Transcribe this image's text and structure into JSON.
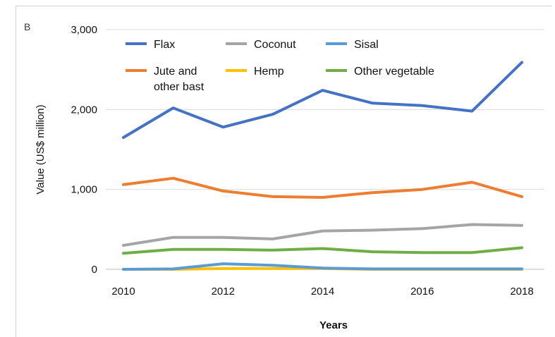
{
  "panel_label": "B",
  "chart_data": {
    "type": "line",
    "xlabel": "Years",
    "ylabel": "Value (US$ million)",
    "x": [
      2010,
      2011,
      2012,
      2013,
      2014,
      2015,
      2016,
      2017,
      2018
    ],
    "x_ticks": [
      2010,
      2012,
      2014,
      2016,
      2018
    ],
    "y_ticks": [
      0,
      1000,
      2000,
      3000
    ],
    "y_tick_labels": [
      "0",
      "1,000",
      "2,000",
      "3,000"
    ],
    "ylim": [
      0,
      3000
    ],
    "xlim": [
      2010,
      2018
    ],
    "grid": true,
    "legend_position": "top",
    "series": [
      {
        "name": "Flax",
        "color": "#4472c4",
        "values": [
          1650,
          2020,
          1780,
          1940,
          2240,
          2080,
          2050,
          1980,
          2590
        ]
      },
      {
        "name": "Coconut",
        "color": "#a5a5a5",
        "values": [
          300,
          400,
          400,
          380,
          480,
          490,
          510,
          560,
          550
        ]
      },
      {
        "name": "Sisal",
        "color": "#5b9bd5",
        "values": [
          0,
          5,
          70,
          50,
          15,
          5,
          5,
          5,
          5
        ]
      },
      {
        "name": "Jute and other bast",
        "color": "#ed7d31",
        "values": [
          1060,
          1140,
          980,
          910,
          900,
          960,
          1000,
          1090,
          910
        ]
      },
      {
        "name": "Hemp",
        "color": "#ffc000",
        "values": [
          0,
          0,
          10,
          10,
          10,
          0,
          0,
          0,
          0
        ]
      },
      {
        "name": "Other vegetable",
        "color": "#70ad47",
        "values": [
          200,
          250,
          250,
          240,
          260,
          220,
          210,
          210,
          270
        ]
      }
    ]
  }
}
